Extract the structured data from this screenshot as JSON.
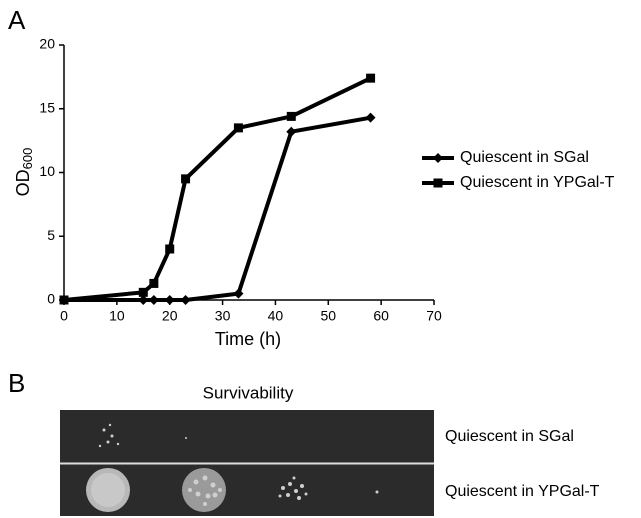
{
  "chart_data": {
    "type": "line",
    "panel_label": "A",
    "xlabel": "Time (h)",
    "ylabel": {
      "text": "OD",
      "subscript": "600"
    },
    "xlim": [
      0,
      70
    ],
    "xticks": [
      0,
      10,
      20,
      30,
      40,
      50,
      60,
      70
    ],
    "ylim": [
      0,
      20
    ],
    "yticks": [
      0,
      5,
      10,
      15,
      20
    ],
    "legend": "right",
    "series": [
      {
        "name": "Quiescent in SGal",
        "color": "#000000",
        "marker": "diamond",
        "x": [
          0,
          15,
          17,
          20,
          23,
          33,
          43,
          58
        ],
        "values": [
          0,
          0,
          0,
          0,
          0,
          0.5,
          13.2,
          14.3
        ]
      },
      {
        "name": "Quiescent in YPGal-T",
        "color": "#000000",
        "marker": "square",
        "x": [
          0,
          15,
          17,
          20,
          23,
          33,
          43,
          58
        ],
        "values": [
          0,
          0.6,
          1.3,
          4,
          9.5,
          13.5,
          14.4,
          17.4
        ]
      }
    ]
  },
  "panel_b": {
    "label": "B",
    "title": "Survivability",
    "rows": [
      "Quiescent in SGal",
      "Quiescent in YPGal-T"
    ]
  }
}
